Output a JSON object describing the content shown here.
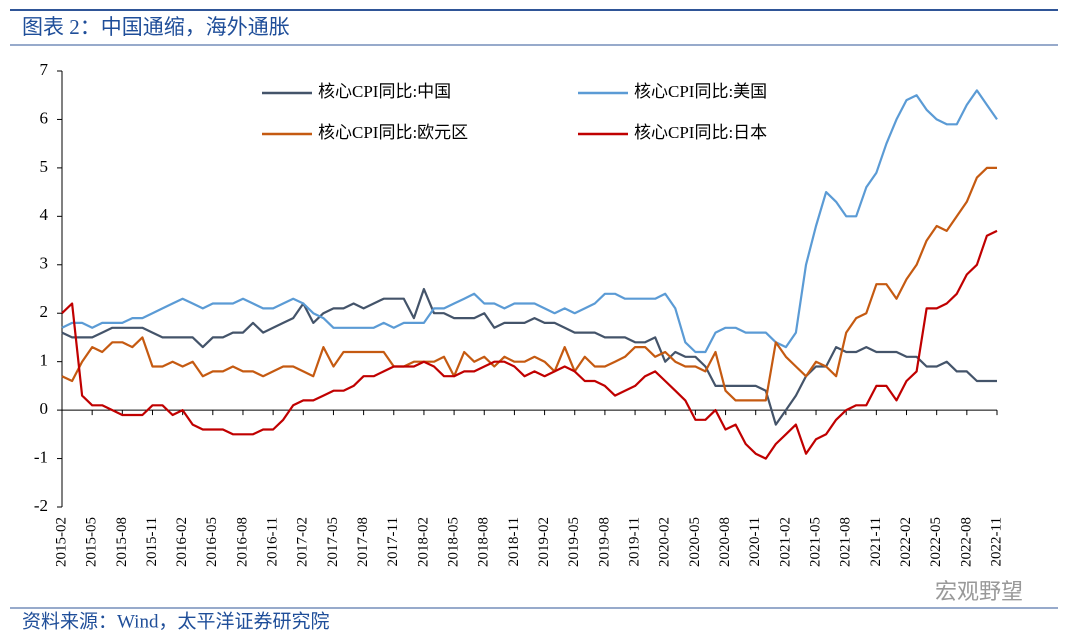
{
  "header": {
    "title": "图表 2：中国通缩，海外通胀"
  },
  "chart_data": {
    "type": "line",
    "categories": [
      "2015-02",
      null,
      null,
      "2015-05",
      null,
      null,
      "2015-08",
      null,
      null,
      "2015-11",
      null,
      null,
      "2016-02",
      null,
      null,
      "2016-05",
      null,
      null,
      "2016-08",
      null,
      null,
      "2016-11",
      null,
      null,
      "2017-02",
      null,
      null,
      "2017-05",
      null,
      null,
      "2017-08",
      null,
      null,
      "2017-11",
      null,
      null,
      "2018-02",
      null,
      null,
      "2018-05",
      null,
      null,
      "2018-08",
      null,
      null,
      "2018-11",
      null,
      null,
      "2019-02",
      null,
      null,
      "2019-05",
      null,
      null,
      "2019-08",
      null,
      null,
      "2019-11",
      null,
      null,
      "2020-02",
      null,
      null,
      "2020-05",
      null,
      null,
      "2020-08",
      null,
      null,
      "2020-11",
      null,
      null,
      "2021-02",
      null,
      null,
      "2021-05",
      null,
      null,
      "2021-08",
      null,
      null,
      "2021-11",
      null,
      null,
      "2022-02",
      null,
      null,
      "2022-05",
      null,
      null,
      "2022-08",
      null,
      null,
      "2022-11"
    ],
    "series": [
      {
        "name": "核心CPI同比:中国",
        "color": "#44546a",
        "values": [
          1.6,
          1.5,
          1.5,
          1.5,
          1.6,
          1.7,
          1.7,
          1.7,
          1.7,
          1.6,
          1.5,
          1.5,
          1.5,
          1.5,
          1.3,
          1.5,
          1.5,
          1.6,
          1.6,
          1.8,
          1.6,
          1.7,
          1.8,
          1.9,
          2.2,
          1.8,
          2.0,
          2.1,
          2.1,
          2.2,
          2.1,
          2.2,
          2.3,
          2.3,
          2.3,
          1.9,
          2.5,
          2.0,
          2.0,
          1.9,
          1.9,
          1.9,
          2.0,
          1.7,
          1.8,
          1.8,
          1.8,
          1.9,
          1.8,
          1.8,
          1.7,
          1.6,
          1.6,
          1.6,
          1.5,
          1.5,
          1.5,
          1.4,
          1.4,
          1.5,
          1.0,
          1.2,
          1.1,
          1.1,
          0.9,
          0.5,
          0.5,
          0.5,
          0.5,
          0.5,
          0.4,
          -0.3,
          0.0,
          0.3,
          0.7,
          0.9,
          0.9,
          1.3,
          1.2,
          1.2,
          1.3,
          1.2,
          1.2,
          1.2,
          1.1,
          1.1,
          0.9,
          0.9,
          1.0,
          0.8,
          0.8,
          0.6,
          0.6,
          0.6
        ]
      },
      {
        "name": "核心CPI同比:美国",
        "color": "#5b9bd5",
        "values": [
          1.7,
          1.8,
          1.8,
          1.7,
          1.8,
          1.8,
          1.8,
          1.9,
          1.9,
          2.0,
          2.1,
          2.2,
          2.3,
          2.2,
          2.1,
          2.2,
          2.2,
          2.2,
          2.3,
          2.2,
          2.1,
          2.1,
          2.2,
          2.3,
          2.2,
          2.0,
          1.9,
          1.7,
          1.7,
          1.7,
          1.7,
          1.7,
          1.8,
          1.7,
          1.8,
          1.8,
          1.8,
          2.1,
          2.1,
          2.2,
          2.3,
          2.4,
          2.2,
          2.2,
          2.1,
          2.2,
          2.2,
          2.2,
          2.1,
          2.0,
          2.1,
          2.0,
          2.1,
          2.2,
          2.4,
          2.4,
          2.3,
          2.3,
          2.3,
          2.3,
          2.4,
          2.1,
          1.4,
          1.2,
          1.2,
          1.6,
          1.7,
          1.7,
          1.6,
          1.6,
          1.6,
          1.4,
          1.3,
          1.6,
          3.0,
          3.8,
          4.5,
          4.3,
          4.0,
          4.0,
          4.6,
          4.9,
          5.5,
          6.0,
          6.4,
          6.5,
          6.2,
          6.0,
          5.9,
          5.9,
          6.3,
          6.6,
          6.3,
          6.0
        ]
      },
      {
        "name": "核心CPI同比:欧元区",
        "color": "#c55a11",
        "values": [
          0.7,
          0.6,
          1.0,
          1.3,
          1.2,
          1.4,
          1.4,
          1.3,
          1.5,
          0.9,
          0.9,
          1.0,
          0.9,
          1.0,
          0.7,
          0.8,
          0.8,
          0.9,
          0.8,
          0.8,
          0.7,
          0.8,
          0.9,
          0.9,
          0.8,
          0.7,
          1.3,
          0.9,
          1.2,
          1.2,
          1.2,
          1.2,
          1.2,
          0.9,
          0.9,
          1.0,
          1.0,
          1.0,
          1.1,
          0.7,
          1.2,
          1.0,
          1.1,
          0.9,
          1.1,
          1.0,
          1.0,
          1.1,
          1.0,
          0.8,
          1.3,
          0.8,
          1.1,
          0.9,
          0.9,
          1.0,
          1.1,
          1.3,
          1.3,
          1.1,
          1.2,
          1.0,
          0.9,
          0.9,
          0.8,
          1.2,
          0.4,
          0.2,
          0.2,
          0.2,
          0.2,
          1.4,
          1.1,
          0.9,
          0.7,
          1.0,
          0.9,
          0.7,
          1.6,
          1.9,
          2.0,
          2.6,
          2.6,
          2.3,
          2.7,
          3.0,
          3.5,
          3.8,
          3.7,
          4.0,
          4.3,
          4.8,
          5.0,
          5.0
        ]
      },
      {
        "name": "核心CPI同比:日本",
        "color": "#c00000",
        "values": [
          2.0,
          2.2,
          0.3,
          0.1,
          0.1,
          0.0,
          -0.1,
          -0.1,
          -0.1,
          0.1,
          0.1,
          -0.1,
          0.0,
          -0.3,
          -0.4,
          -0.4,
          -0.4,
          -0.5,
          -0.5,
          -0.5,
          -0.4,
          -0.4,
          -0.2,
          0.1,
          0.2,
          0.2,
          0.3,
          0.4,
          0.4,
          0.5,
          0.7,
          0.7,
          0.8,
          0.9,
          0.9,
          0.9,
          1.0,
          0.9,
          0.7,
          0.7,
          0.8,
          0.8,
          0.9,
          1.0,
          1.0,
          0.9,
          0.7,
          0.8,
          0.7,
          0.8,
          0.9,
          0.8,
          0.6,
          0.6,
          0.5,
          0.3,
          0.4,
          0.5,
          0.7,
          0.8,
          0.6,
          0.4,
          0.2,
          -0.2,
          -0.2,
          0.0,
          -0.4,
          -0.3,
          -0.7,
          -0.9,
          -1.0,
          -0.7,
          -0.5,
          -0.3,
          -0.9,
          -0.6,
          -0.5,
          -0.2,
          0.0,
          0.1,
          0.1,
          0.5,
          0.5,
          0.2,
          0.6,
          0.8,
          2.1,
          2.1,
          2.2,
          2.4,
          2.8,
          3.0,
          3.6,
          3.7
        ]
      }
    ],
    "ylim": [
      -2,
      7
    ],
    "yticks": [
      -2,
      -1,
      0,
      1,
      2,
      3,
      4,
      5,
      6,
      7
    ],
    "grid": false
  },
  "footer": {
    "source": "资料来源：Wind，太平洋证券研究院",
    "watermark": "宏观野望"
  }
}
